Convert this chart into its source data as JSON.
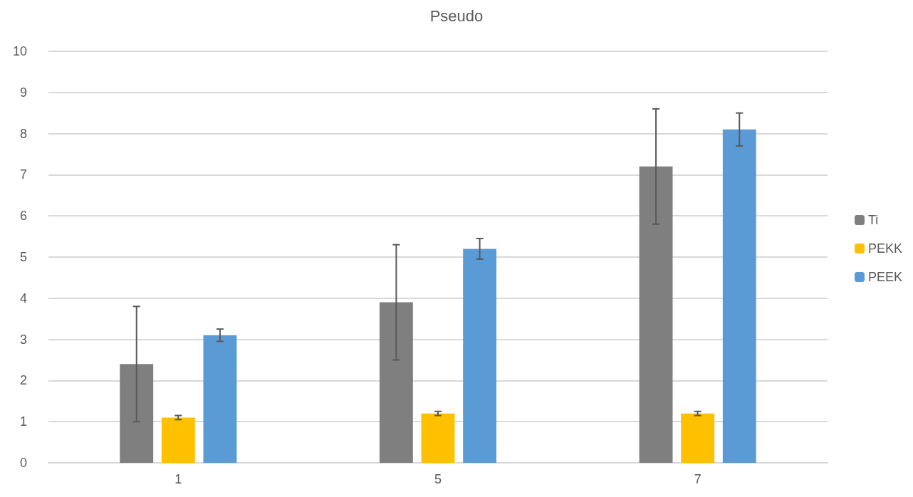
{
  "chart_data": {
    "type": "bar",
    "title": "Pseudo",
    "categories": [
      "1",
      "5",
      "7"
    ],
    "series": [
      {
        "name": "Ti",
        "color": "#7f7f7f",
        "values": [
          2.4,
          3.9,
          7.2
        ],
        "errors": [
          1.4,
          1.4,
          1.4
        ]
      },
      {
        "name": "PEKK",
        "color": "#ffc000",
        "values": [
          1.1,
          1.2,
          1.2
        ],
        "errors": [
          0.05,
          0.05,
          0.05
        ]
      },
      {
        "name": "PEEK",
        "color": "#5b9bd5",
        "values": [
          3.1,
          5.2,
          8.1
        ],
        "errors": [
          0.15,
          0.25,
          0.4
        ]
      }
    ],
    "ylim": [
      0,
      10
    ],
    "yticks": [
      0,
      1,
      2,
      3,
      4,
      5,
      6,
      7,
      8,
      9,
      10
    ],
    "grid": "y",
    "legend": "right"
  }
}
